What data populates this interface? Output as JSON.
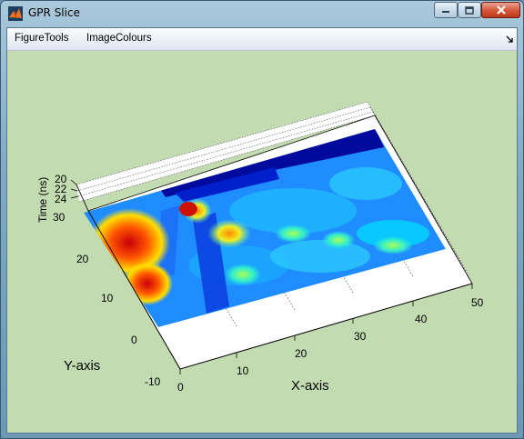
{
  "window": {
    "title": "GPR Slice",
    "icon": "matlab-icon",
    "controls": [
      "minimize-icon",
      "maximize-icon",
      "close-icon"
    ]
  },
  "menubar": {
    "items": [
      "FigureTools",
      "ImageColours"
    ],
    "dock_icon": "dock-arrow-icon"
  },
  "plot": {
    "xlabel": "X-axis",
    "ylabel": "Y-axis",
    "zlabel": "Time (ns)",
    "x_ticks": [
      "0",
      "10",
      "20",
      "30",
      "40",
      "50"
    ],
    "y_ticks": [
      "-10",
      "0",
      "10",
      "20",
      "30"
    ],
    "z_ticks": [
      "20",
      "22",
      "24"
    ],
    "colormap": "jet",
    "background": "#c3dbb1"
  },
  "chart_data": {
    "type": "heatmap",
    "title": "",
    "xlabel": "X-axis",
    "ylabel": "Y-axis",
    "zlabel": "Time (ns)",
    "xlim": [
      0,
      50
    ],
    "ylim": [
      -10,
      30
    ],
    "zlim": [
      20,
      24
    ],
    "grid": true
  }
}
